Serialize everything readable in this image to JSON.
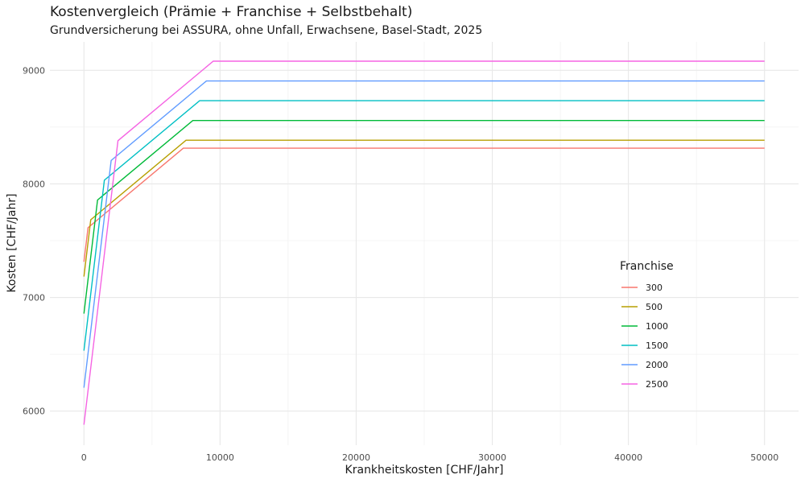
{
  "chart_data": {
    "type": "line",
    "title": "Kostenvergleich (Prämie + Franchise + Selbstbehalt)",
    "subtitle": "Grundversicherung bei ASSURA, ohne Unfall, Erwachsene, Basel-Stadt, 2025",
    "xlabel": "Krankheitskosten [CHF/Jahr]",
    "ylabel": "Kosten [CHF/Jahr]",
    "xlim": [
      -2500,
      52500
    ],
    "ylim": [
      5700,
      9250
    ],
    "xticks": [
      0,
      10000,
      20000,
      30000,
      40000,
      50000
    ],
    "yticks": [
      6000,
      7000,
      8000,
      9000
    ],
    "grid": true,
    "legend": {
      "title": "Franchise",
      "position": "right"
    },
    "series": [
      {
        "name": "300",
        "color": "#F8766D",
        "x": [
          0,
          300,
          7300,
          50000
        ],
        "y": [
          7314,
          7614,
          8314,
          8314
        ]
      },
      {
        "name": "500",
        "color": "#B79F00",
        "x": [
          0,
          500,
          7500,
          50000
        ],
        "y": [
          7184,
          7684,
          8384,
          8384
        ]
      },
      {
        "name": "1000",
        "color": "#00BA38",
        "x": [
          0,
          1000,
          8000,
          50000
        ],
        "y": [
          6858,
          7858,
          8558,
          8558
        ]
      },
      {
        "name": "1500",
        "color": "#00BFC4",
        "x": [
          0,
          1500,
          8500,
          50000
        ],
        "y": [
          6532,
          8032,
          8732,
          8732
        ]
      },
      {
        "name": "2000",
        "color": "#619CFF",
        "x": [
          0,
          2000,
          9000,
          50000
        ],
        "y": [
          6206,
          8206,
          8906,
          8906
        ]
      },
      {
        "name": "2500",
        "color": "#F564E3",
        "x": [
          0,
          2500,
          9500,
          50000
        ],
        "y": [
          5880,
          8380,
          9080,
          9080
        ]
      }
    ]
  }
}
